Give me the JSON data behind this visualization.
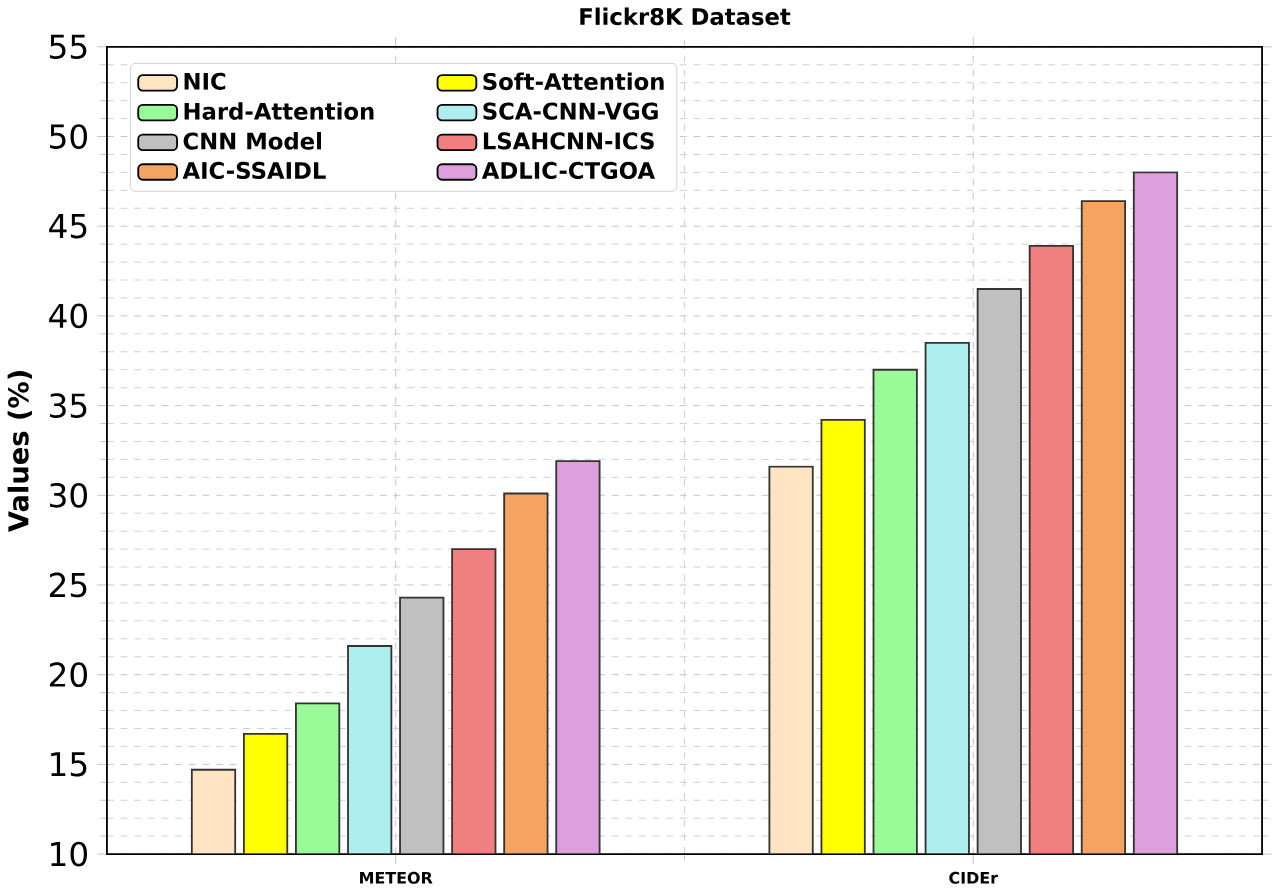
{
  "chart_data": {
    "type": "bar",
    "title": "Flickr8K Dataset",
    "ylabel": "Values (%)",
    "categories": [
      "METEOR",
      "CIDEr"
    ],
    "series": [
      {
        "name": "NIC",
        "color": "#ffe4c4",
        "values": [
          14.7,
          31.6
        ]
      },
      {
        "name": "Soft-Attention",
        "color": "#ffff00",
        "values": [
          16.7,
          34.2
        ]
      },
      {
        "name": "Hard-Attention",
        "color": "#98fb98",
        "values": [
          18.4,
          37.0
        ]
      },
      {
        "name": "SCA-CNN-VGG",
        "color": "#afeeee",
        "values": [
          21.6,
          38.5
        ]
      },
      {
        "name": "CNN Model",
        "color": "#c0c0c0",
        "values": [
          24.3,
          41.5
        ]
      },
      {
        "name": "LSAHCNN-ICS",
        "color": "#f08080",
        "values": [
          27.0,
          43.9
        ]
      },
      {
        "name": "AIC-SSAIDL",
        "color": "#f4a460",
        "values": [
          30.1,
          46.4
        ]
      },
      {
        "name": "ADLIC-CTGOA",
        "color": "#dda0dd",
        "values": [
          31.9,
          48.0
        ]
      }
    ],
    "ylim": [
      10,
      55
    ],
    "yticks": [
      10,
      15,
      20,
      25,
      30,
      35,
      40,
      45,
      50,
      55
    ],
    "grid": true,
    "legend": "top left"
  }
}
